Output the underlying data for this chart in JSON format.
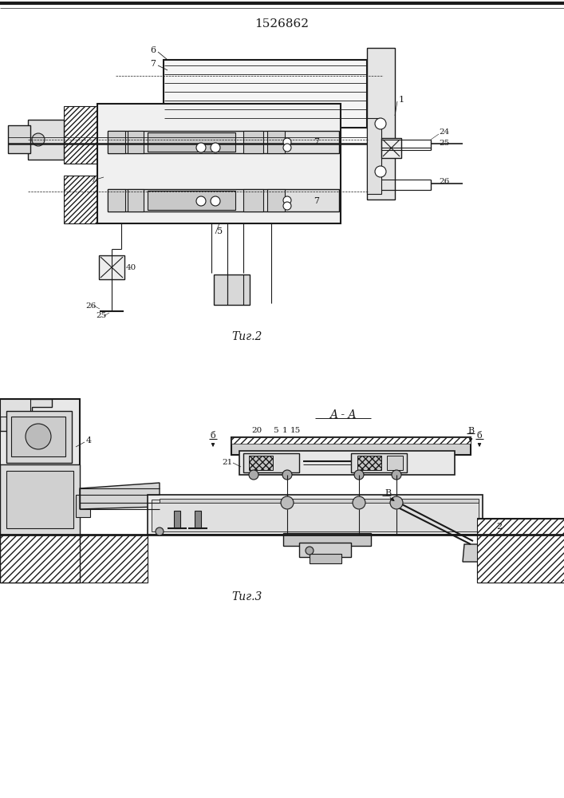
{
  "title": "1526862",
  "fig2_label": "Τиг.2",
  "fig3_label": "Τиг.3",
  "bg_color": "#ffffff",
  "lc": "#1a1a1a"
}
